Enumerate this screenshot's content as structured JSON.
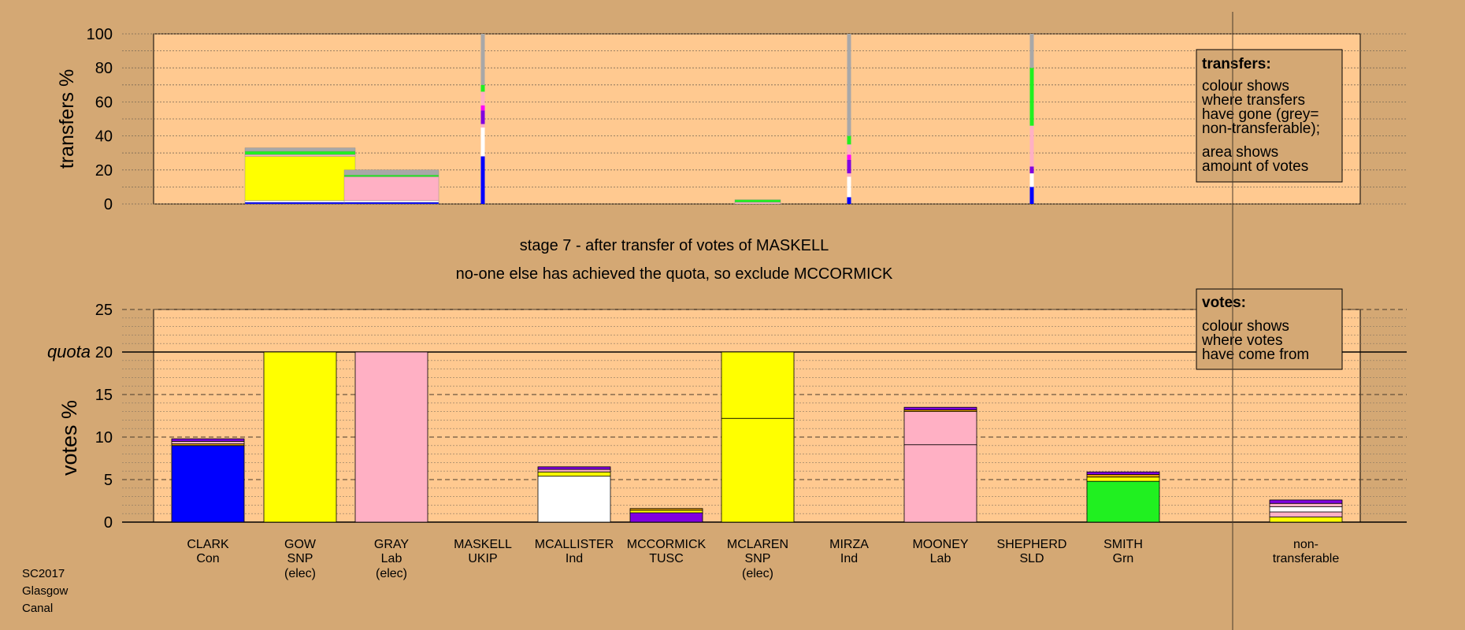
{
  "colors": {
    "background": "#D4A874",
    "plot_area": "#FFC990",
    "legend_box": "#D4A874",
    "Con": "#0000FF",
    "SNP": "#FFFF00",
    "Lab": "#FFB0C4",
    "UKIP": "#FF00FF",
    "Ind": "#FFFFFF",
    "TUSC": "#8000E0",
    "Grn": "#20F020",
    "SLD": "#E8A000",
    "nontransferable": "#A8A8A8"
  },
  "stage": {
    "line1": "stage 7 - after transfer of votes of MASKELL",
    "line2": "no-one else has achieved the quota, so exclude MCCORMICK"
  },
  "transfers_legend": {
    "title": "transfers:",
    "lines": [
      "colour shows",
      "where transfers",
      "have gone (grey=",
      "non-transferable);",
      "area shows",
      "amount of votes"
    ]
  },
  "votes_legend": {
    "title": "votes:",
    "lines": [
      "colour shows",
      "where votes",
      "have come from"
    ]
  },
  "footer": [
    "SC2017",
    "Glasgow",
    "Canal"
  ],
  "chart_data": [
    {
      "type": "bar",
      "panel": "transfers",
      "ylabel": "transfers %",
      "ylim": [
        0,
        100
      ],
      "yticks": [
        0,
        20,
        40,
        60,
        80,
        100
      ],
      "grid": true,
      "categories": [
        "CLARK",
        "GOW",
        "GRAY",
        "MASKELL",
        "MCALLISTER",
        "MCCORMICK",
        "MCLAREN",
        "MIRZA",
        "MOONEY",
        "SHEPHERD",
        "SMITH"
      ],
      "transfer_bars": [
        {
          "candidate": "GOW",
          "segments": [
            {
              "party": "Con",
              "value": 1
            },
            {
              "party": "Ind",
              "value": 1
            },
            {
              "party": "SNP",
              "value": 26
            },
            {
              "party": "Lab",
              "value": 1
            },
            {
              "party": "Grn",
              "value": 2
            },
            {
              "party": "nontransferable",
              "value": 2
            }
          ]
        },
        {
          "candidate": "GRAY",
          "segments": [
            {
              "party": "Con",
              "value": 1
            },
            {
              "party": "Ind",
              "value": 1
            },
            {
              "party": "Lab",
              "value": 14
            },
            {
              "party": "Grn",
              "value": 1
            },
            {
              "party": "nontransferable",
              "value": 3
            }
          ]
        },
        {
          "candidate": "MCLAREN",
          "segments": [
            {
              "party": "Lab",
              "value": 1
            },
            {
              "party": "Grn",
              "value": 1.5
            }
          ]
        }
      ],
      "exclusion_bars": [
        {
          "candidate": "MASKELL",
          "segments": [
            {
              "party": "Con",
              "value": 28
            },
            {
              "party": "Ind",
              "value": 17
            },
            {
              "party": "Lab",
              "value": 2
            },
            {
              "party": "TUSC",
              "value": 8
            },
            {
              "party": "UKIP",
              "value": 3
            },
            {
              "party": "Lab",
              "value": 8
            },
            {
              "party": "Grn",
              "value": 4
            },
            {
              "party": "nontransferable",
              "value": 30
            }
          ]
        },
        {
          "candidate": "MIRZA",
          "segments": [
            {
              "party": "Con",
              "value": 4
            },
            {
              "party": "Ind",
              "value": 12
            },
            {
              "party": "Lab",
              "value": 2
            },
            {
              "party": "TUSC",
              "value": 8
            },
            {
              "party": "UKIP",
              "value": 3
            },
            {
              "party": "Lab",
              "value": 6
            },
            {
              "party": "Grn",
              "value": 5
            },
            {
              "party": "nontransferable",
              "value": 60
            }
          ]
        },
        {
          "candidate": "SHEPHERD",
          "segments": [
            {
              "party": "Con",
              "value": 10
            },
            {
              "party": "Ind",
              "value": 8
            },
            {
              "party": "TUSC",
              "value": 4
            },
            {
              "party": "Lab",
              "value": 24
            },
            {
              "party": "Grn",
              "value": 34
            },
            {
              "party": "nontransferable",
              "value": 20
            }
          ]
        }
      ]
    },
    {
      "type": "bar",
      "panel": "votes",
      "ylabel": "votes %",
      "ylim": [
        0,
        25
      ],
      "yticks": [
        0,
        5,
        10,
        15,
        20,
        25
      ],
      "quota": 20,
      "quota_label": "quota",
      "grid": true,
      "bars": [
        {
          "name": "CLARK",
          "party": "Con",
          "note": "",
          "segments": [
            {
              "party": "Con",
              "value": 9.0
            },
            {
              "party": "SLD",
              "value": 0.2
            },
            {
              "party": "Lab",
              "value": 0.3
            },
            {
              "party": "TUSC",
              "value": 0.3
            }
          ]
        },
        {
          "name": "GOW",
          "party": "SNP",
          "note": "(elec)",
          "segments": [
            {
              "party": "SNP",
              "value": 20.0
            }
          ]
        },
        {
          "name": "GRAY",
          "party": "Lab",
          "note": "(elec)",
          "segments": [
            {
              "party": "Lab",
              "value": 20.0
            }
          ]
        },
        {
          "name": "MASKELL",
          "party": "UKIP",
          "note": "",
          "segments": []
        },
        {
          "name": "MCALLISTER",
          "party": "Ind",
          "note": "",
          "segments": [
            {
              "party": "Ind",
              "value": 5.4
            },
            {
              "party": "SNP",
              "value": 0.5
            },
            {
              "party": "Lab",
              "value": 0.3
            },
            {
              "party": "TUSC",
              "value": 0.3
            }
          ]
        },
        {
          "name": "MCCORMICK",
          "party": "TUSC",
          "note": "",
          "segments": [
            {
              "party": "TUSC",
              "value": 1.1
            },
            {
              "party": "SNP",
              "value": 0.3
            },
            {
              "party": "SLD",
              "value": 0.2
            }
          ]
        },
        {
          "name": "MCLAREN",
          "party": "SNP",
          "note": "(elec)",
          "segments": [
            {
              "party": "SNP",
              "value": 12.2
            },
            {
              "party": "SNP",
              "value": 7.8
            }
          ]
        },
        {
          "name": "MIRZA",
          "party": "Ind",
          "note": "",
          "segments": []
        },
        {
          "name": "MOONEY",
          "party": "Lab",
          "note": "",
          "segments": [
            {
              "party": "Lab",
              "value": 9.1
            },
            {
              "party": "Lab",
              "value": 3.9
            },
            {
              "party": "SLD",
              "value": 0.2
            },
            {
              "party": "TUSC",
              "value": 0.3
            }
          ]
        },
        {
          "name": "SHEPHERD",
          "party": "SLD",
          "note": "",
          "segments": []
        },
        {
          "name": "SMITH",
          "party": "Grn",
          "note": "",
          "segments": [
            {
              "party": "Grn",
              "value": 4.8
            },
            {
              "party": "SNP",
              "value": 0.5
            },
            {
              "party": "SLD",
              "value": 0.3
            },
            {
              "party": "TUSC",
              "value": 0.3
            }
          ]
        }
      ],
      "nontransferable": {
        "label_lines": [
          "non-",
          "transferable"
        ],
        "segments": [
          {
            "party": "SNP",
            "value": 0.6
          },
          {
            "party": "Lab",
            "value": 0.6
          },
          {
            "party": "Ind",
            "value": 0.6
          },
          {
            "party": "Lab",
            "value": 0.4
          },
          {
            "party": "TUSC",
            "value": 0.4
          }
        ]
      }
    }
  ]
}
